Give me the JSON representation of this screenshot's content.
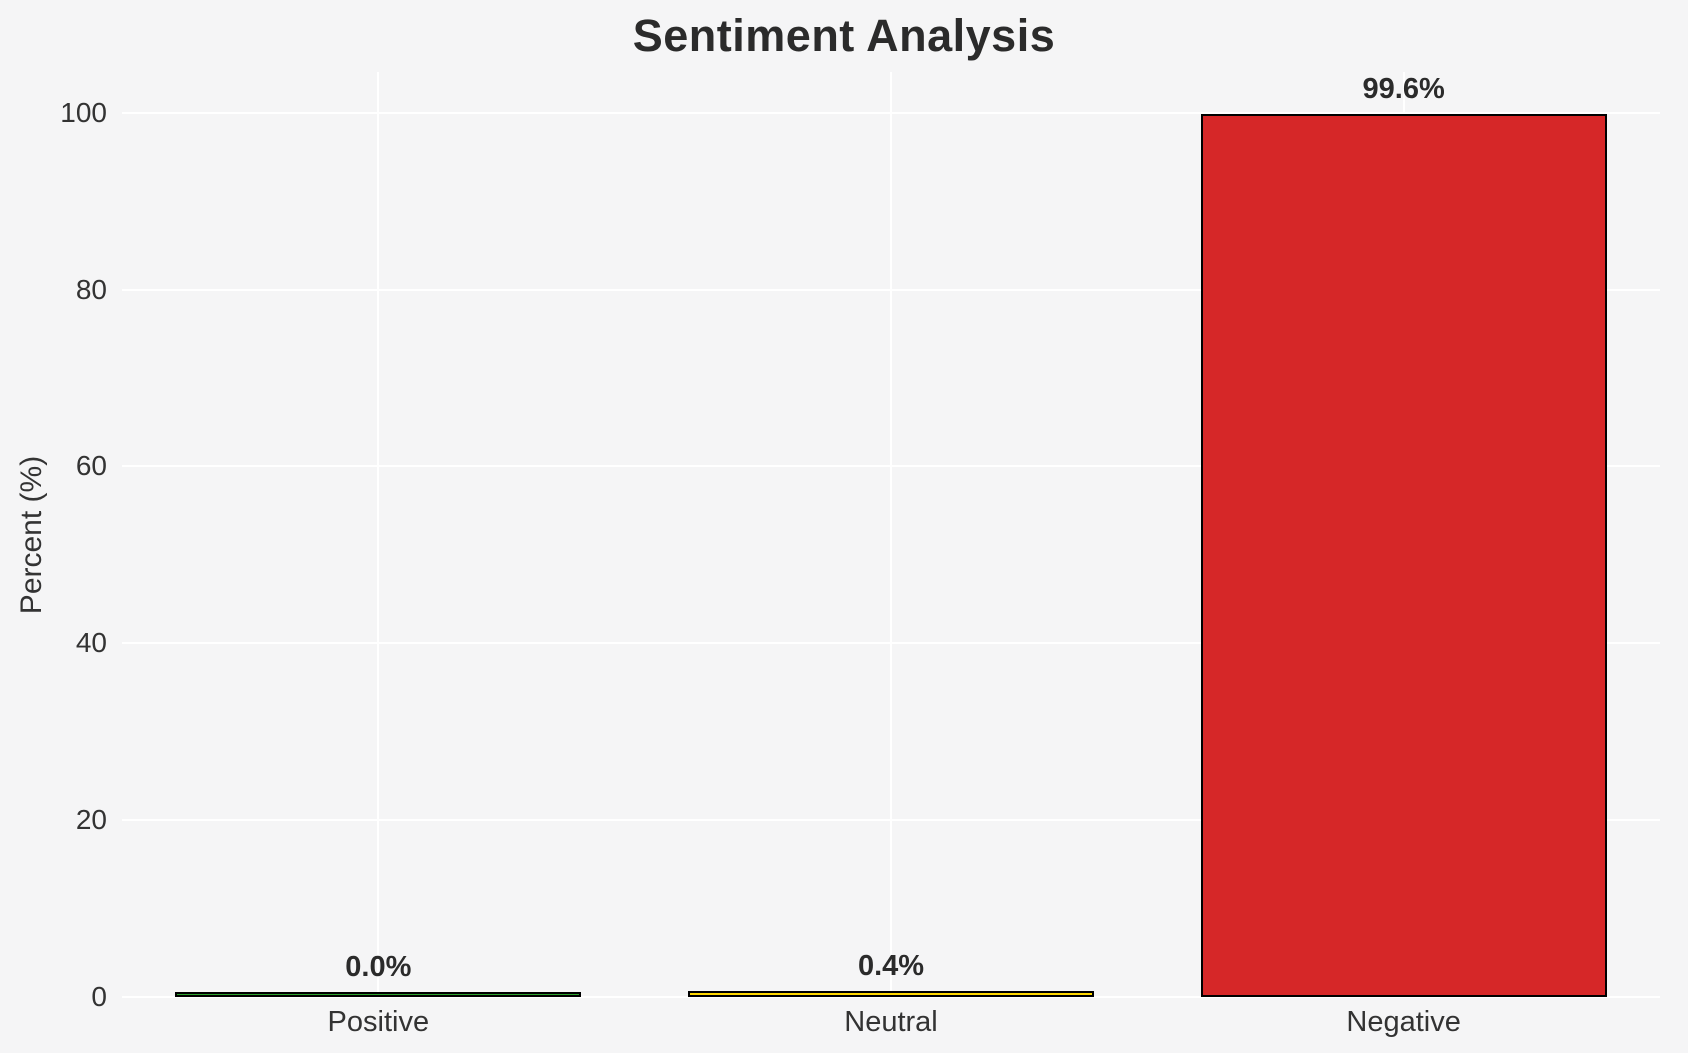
{
  "chart_data": {
    "type": "bar",
    "title": "Sentiment Analysis",
    "xlabel": "",
    "ylabel": "Percent (%)",
    "categories": [
      "Positive",
      "Neutral",
      "Negative"
    ],
    "values": [
      0.0,
      0.4,
      99.6
    ],
    "value_labels": [
      "0.0%",
      "0.4%",
      "99.6%"
    ],
    "bar_colors": [
      "#2ca02c",
      "#ffd700",
      "#d62728"
    ],
    "bar_edge_color": "#000000",
    "bar_width_fraction": 0.264,
    "yticks": [
      0,
      20,
      40,
      60,
      80,
      100
    ],
    "ytick_labels": [
      "0",
      "20",
      "40",
      "60",
      "80",
      "100"
    ],
    "ylim": [
      0,
      104.6
    ],
    "grid": true,
    "grid_color": "#ffffff",
    "legend_position": "none",
    "background_color": "#f5f5f6",
    "title_color": "#2b2b2b",
    "text_color": "#333333"
  }
}
